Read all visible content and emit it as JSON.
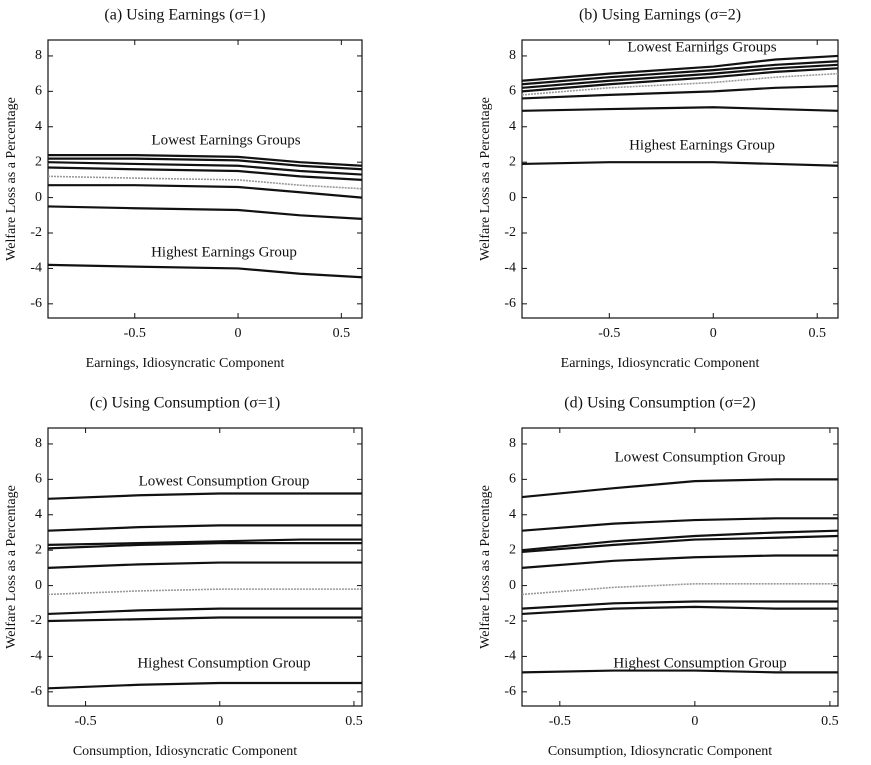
{
  "chart_data": [
    {
      "type": "line",
      "title": "(a) Using Earnings (σ=1)",
      "xlabel": "Earnings, Idiosyncratic Component",
      "ylabel": "Welfare Loss as a Percentage",
      "annotations": [
        "Lowest Earnings Groups",
        "Highest Earnings Group"
      ],
      "xlim": [
        -0.92,
        0.6
      ],
      "ylim": [
        -6.8,
        8.9
      ],
      "xticks": [
        -0.5,
        0,
        0.5
      ],
      "yticks": [
        8,
        6,
        4,
        2,
        0,
        -2,
        -4,
        -6
      ],
      "x": [
        -0.92,
        -0.5,
        0,
        0.3,
        0.6
      ],
      "series": [
        {
          "color": "#111",
          "values": [
            2.4,
            2.4,
            2.3,
            2.0,
            1.8
          ]
        },
        {
          "color": "#111",
          "values": [
            2.2,
            2.2,
            2.1,
            1.8,
            1.6
          ]
        },
        {
          "color": "#111",
          "values": [
            2.0,
            1.9,
            1.8,
            1.5,
            1.3
          ]
        },
        {
          "color": "#111",
          "values": [
            1.7,
            1.6,
            1.5,
            1.2,
            1.0
          ]
        },
        {
          "color": "#999",
          "values": [
            1.2,
            1.1,
            1.0,
            0.7,
            0.5
          ]
        },
        {
          "color": "#111",
          "values": [
            0.7,
            0.7,
            0.6,
            0.3,
            0.0
          ]
        },
        {
          "color": "#111",
          "values": [
            -0.5,
            -0.6,
            -0.7,
            -1.0,
            -1.2
          ]
        },
        {
          "color": "#111",
          "values": [
            -3.8,
            -3.9,
            -4.0,
            -4.3,
            -4.5
          ]
        }
      ]
    },
    {
      "type": "line",
      "title": "(b) Using Earnings (σ=2)",
      "xlabel": "Earnings, Idiosyncratic Component",
      "ylabel": "Welfare Loss as a Percentage",
      "annotations": [
        "Lowest Earnings Groups",
        "Highest Earnings Group"
      ],
      "xlim": [
        -0.92,
        0.6
      ],
      "ylim": [
        -6.8,
        8.9
      ],
      "xticks": [
        -0.5,
        0,
        0.5
      ],
      "yticks": [
        8,
        6,
        4,
        2,
        0,
        -2,
        -4,
        -6
      ],
      "x": [
        -0.92,
        -0.5,
        0,
        0.3,
        0.6
      ],
      "series": [
        {
          "color": "#111",
          "values": [
            6.6,
            7.0,
            7.4,
            7.8,
            8.0
          ]
        },
        {
          "color": "#111",
          "values": [
            6.4,
            6.8,
            7.2,
            7.5,
            7.7
          ]
        },
        {
          "color": "#111",
          "values": [
            6.2,
            6.6,
            7.0,
            7.3,
            7.5
          ]
        },
        {
          "color": "#111",
          "values": [
            6.0,
            6.4,
            6.8,
            7.1,
            7.3
          ]
        },
        {
          "color": "#999",
          "values": [
            5.8,
            6.2,
            6.5,
            6.8,
            7.0
          ]
        },
        {
          "color": "#111",
          "values": [
            5.6,
            5.8,
            6.0,
            6.2,
            6.3
          ]
        },
        {
          "color": "#111",
          "values": [
            4.9,
            5.0,
            5.1,
            5.0,
            4.9
          ]
        },
        {
          "color": "#111",
          "values": [
            1.9,
            2.0,
            2.0,
            1.9,
            1.8
          ]
        }
      ]
    },
    {
      "type": "line",
      "title": "(c) Using Consumption (σ=1)",
      "xlabel": "Consumption, Idiosyncratic Component",
      "ylabel": "Welfare Loss as a Percentage",
      "annotations": [
        "Lowest Consumption Group",
        "Highest Consumption Group"
      ],
      "xlim": [
        -0.64,
        0.53
      ],
      "ylim": [
        -6.8,
        8.9
      ],
      "xticks": [
        -0.5,
        0,
        0.5
      ],
      "yticks": [
        8,
        6,
        4,
        2,
        0,
        -2,
        -4,
        -6
      ],
      "x": [
        -0.64,
        -0.3,
        0,
        0.3,
        0.53
      ],
      "series": [
        {
          "color": "#111",
          "values": [
            4.9,
            5.1,
            5.2,
            5.2,
            5.2
          ]
        },
        {
          "color": "#111",
          "values": [
            3.1,
            3.3,
            3.4,
            3.4,
            3.4
          ]
        },
        {
          "color": "#111",
          "values": [
            2.3,
            2.4,
            2.5,
            2.6,
            2.6
          ]
        },
        {
          "color": "#111",
          "values": [
            2.1,
            2.3,
            2.4,
            2.4,
            2.4
          ]
        },
        {
          "color": "#111",
          "values": [
            1.0,
            1.2,
            1.3,
            1.3,
            1.3
          ]
        },
        {
          "color": "#999",
          "values": [
            -0.5,
            -0.3,
            -0.2,
            -0.2,
            -0.2
          ]
        },
        {
          "color": "#111",
          "values": [
            -1.6,
            -1.4,
            -1.3,
            -1.3,
            -1.3
          ]
        },
        {
          "color": "#111",
          "values": [
            -2.0,
            -1.9,
            -1.8,
            -1.8,
            -1.8
          ]
        },
        {
          "color": "#111",
          "values": [
            -5.8,
            -5.6,
            -5.5,
            -5.5,
            -5.5
          ]
        }
      ]
    },
    {
      "type": "line",
      "title": "(d) Using Consumption (σ=2)",
      "xlabel": "Consumption, Idiosyncratic Component",
      "ylabel": "Welfare Loss as a Percentage",
      "annotations": [
        "Lowest Consumption Group",
        "Highest Consumption Group"
      ],
      "xlim": [
        -0.64,
        0.53
      ],
      "ylim": [
        -6.8,
        8.9
      ],
      "xticks": [
        -0.5,
        0,
        0.5
      ],
      "yticks": [
        8,
        6,
        4,
        2,
        0,
        -2,
        -4,
        -6
      ],
      "x": [
        -0.64,
        -0.3,
        0,
        0.3,
        0.53
      ],
      "series": [
        {
          "color": "#111",
          "values": [
            5.0,
            5.5,
            5.9,
            6.0,
            6.0
          ]
        },
        {
          "color": "#111",
          "values": [
            3.1,
            3.5,
            3.7,
            3.8,
            3.8
          ]
        },
        {
          "color": "#111",
          "values": [
            2.0,
            2.5,
            2.8,
            3.0,
            3.1
          ]
        },
        {
          "color": "#111",
          "values": [
            1.9,
            2.3,
            2.6,
            2.7,
            2.8
          ]
        },
        {
          "color": "#111",
          "values": [
            1.0,
            1.4,
            1.6,
            1.7,
            1.7
          ]
        },
        {
          "color": "#999",
          "values": [
            -0.5,
            -0.1,
            0.1,
            0.1,
            0.1
          ]
        },
        {
          "color": "#111",
          "values": [
            -1.3,
            -1.0,
            -0.9,
            -0.9,
            -0.9
          ]
        },
        {
          "color": "#111",
          "values": [
            -1.6,
            -1.3,
            -1.2,
            -1.3,
            -1.3
          ]
        },
        {
          "color": "#111",
          "values": [
            -4.9,
            -4.8,
            -4.8,
            -4.9,
            -4.9
          ]
        }
      ]
    }
  ]
}
